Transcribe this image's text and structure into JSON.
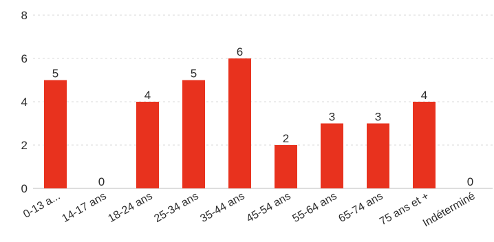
{
  "chart_data": {
    "type": "bar",
    "title": "",
    "xlabel": "",
    "ylabel": "",
    "categories": [
      "0-13 a...",
      "14-17 ans",
      "18-24 ans",
      "25-34 ans",
      "35-44 ans",
      "45-54 ans",
      "55-64 ans",
      "65-74 ans",
      "75 ans et +",
      "Indéterminé"
    ],
    "values": [
      5,
      0,
      4,
      5,
      6,
      2,
      3,
      3,
      4,
      0
    ],
    "ylim": [
      0,
      8
    ],
    "yticks": [
      0,
      2,
      4,
      6,
      8
    ],
    "grid": true,
    "legend": "none",
    "bar_color": "#e8321e"
  }
}
